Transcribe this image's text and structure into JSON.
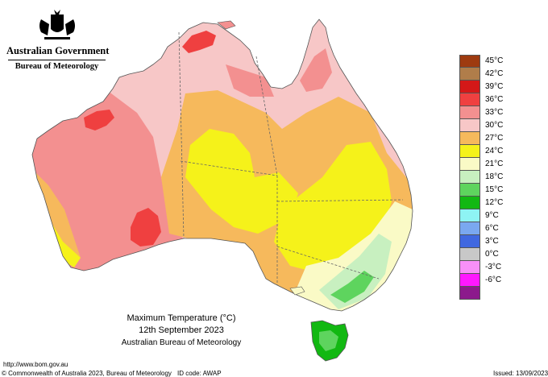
{
  "branding": {
    "government": "Australian Government",
    "bureau": "Bureau of Meteorology",
    "crest_icon": "coat-of-arms-icon"
  },
  "title": {
    "line1": "Maximum Temperature (°C)",
    "line2": "12th September 2023",
    "line3": "Australian Bureau of Meteorology"
  },
  "legend": [
    {
      "label": "45°C",
      "color": "#9e3b10"
    },
    {
      "label": "42°C",
      "color": "#b07d4a"
    },
    {
      "label": "39°C",
      "color": "#d41818"
    },
    {
      "label": "36°C",
      "color": "#ef4040"
    },
    {
      "label": "33°C",
      "color": "#f39090"
    },
    {
      "label": "30°C",
      "color": "#f7c7c7"
    },
    {
      "label": "27°C",
      "color": "#f6b95c"
    },
    {
      "label": "24°C",
      "color": "#f5f21a"
    },
    {
      "label": "21°C",
      "color": "#fafac6"
    },
    {
      "label": "18°C",
      "color": "#c8f0c0"
    },
    {
      "label": "15°C",
      "color": "#5ed45e"
    },
    {
      "label": "12°C",
      "color": "#12b812"
    },
    {
      "label": "9°C",
      "color": "#8ef4f4"
    },
    {
      "label": "6°C",
      "color": "#7aa8f0"
    },
    {
      "label": "3°C",
      "color": "#4068e0"
    },
    {
      "label": "0°C",
      "color": "#c8c8c8"
    },
    {
      "label": "-3°C",
      "color": "#f890f8"
    },
    {
      "label": "-6°C",
      "color": "#ff18ff"
    },
    {
      "label": "",
      "color": "#8c1a8c"
    }
  ],
  "footer": {
    "url": "http://www.bom.gov.au",
    "copyright": "© Commonwealth of Australia 2023, Bureau of Meteorology",
    "id_code": "ID code: AWAP",
    "issued": "Issued: 13/09/2023"
  }
}
